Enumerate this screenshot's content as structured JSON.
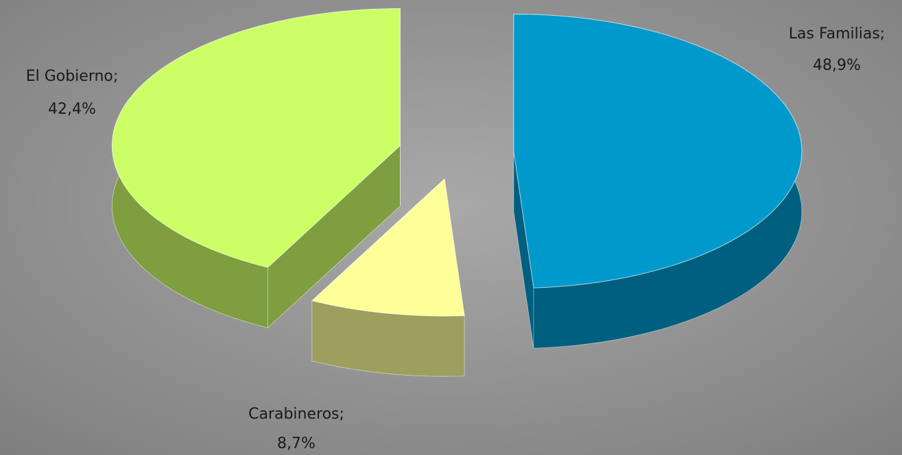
{
  "chart_data": {
    "type": "pie",
    "categories": [
      "Las Familias;",
      "Carabineros;",
      "El Gobierno;"
    ],
    "values": [
      48.9,
      8.7,
      42.4
    ],
    "value_labels": [
      "48,9%",
      "8,7%",
      "42,4%"
    ],
    "colors": [
      "#0099cc",
      "#ffff99",
      "#ccff66"
    ]
  }
}
